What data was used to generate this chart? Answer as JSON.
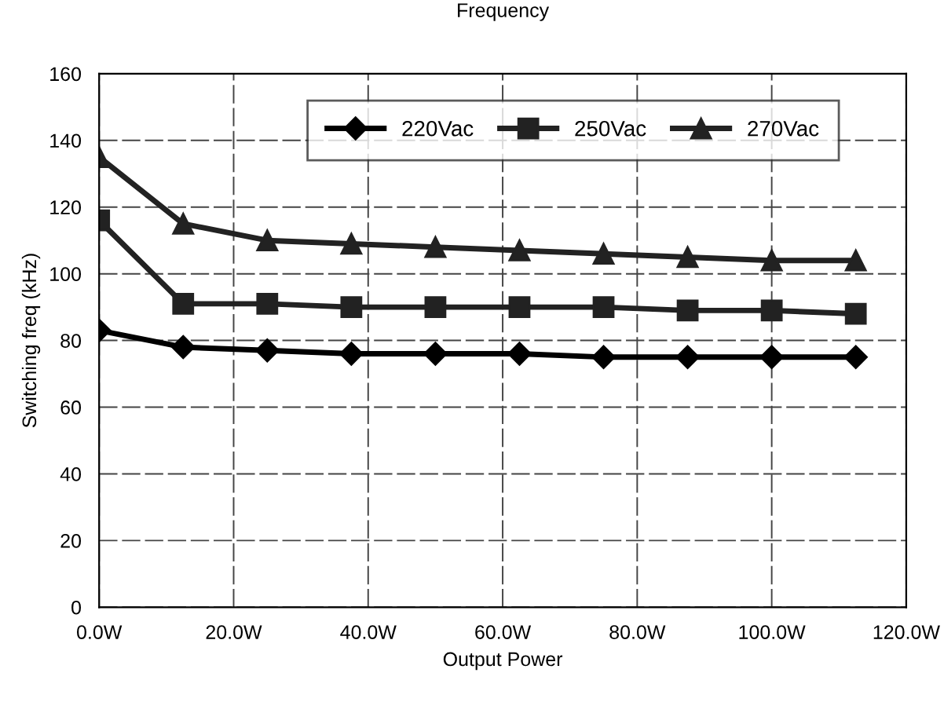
{
  "chart_data": {
    "type": "line",
    "title": "Frequency",
    "xlabel": "Output Power",
    "ylabel": "Switching freq (kHz)",
    "x": [
      0,
      12.5,
      25,
      37.5,
      50,
      62.5,
      75,
      87.5,
      100,
      112.5
    ],
    "series": [
      {
        "name": "220Vac",
        "color": "#000000",
        "marker": "diamond",
        "values": [
          83,
          78,
          77,
          76,
          76,
          76,
          75,
          75,
          75,
          75
        ]
      },
      {
        "name": "250Vac",
        "color": "#222222",
        "marker": "square",
        "values": [
          116,
          91,
          91,
          90,
          90,
          90,
          90,
          89,
          89,
          88
        ]
      },
      {
        "name": "270Vac",
        "color": "#222222",
        "marker": "triangle",
        "values": [
          135,
          115,
          110,
          109,
          108,
          107,
          106,
          105,
          104,
          104
        ]
      }
    ],
    "xlim": [
      0,
      120
    ],
    "xticks": [
      {
        "value": 0,
        "label": "0.0W"
      },
      {
        "value": 20,
        "label": "20.0W"
      },
      {
        "value": 40,
        "label": "40.0W"
      },
      {
        "value": 60,
        "label": "60.0W"
      },
      {
        "value": 80,
        "label": "80.0W"
      },
      {
        "value": 100,
        "label": "100.0W"
      },
      {
        "value": 120,
        "label": "120.0W"
      }
    ],
    "ylim": [
      0,
      160
    ],
    "yticks": [
      0,
      20,
      40,
      60,
      80,
      100,
      120,
      140,
      160
    ],
    "grid": true,
    "legend": "top right"
  }
}
